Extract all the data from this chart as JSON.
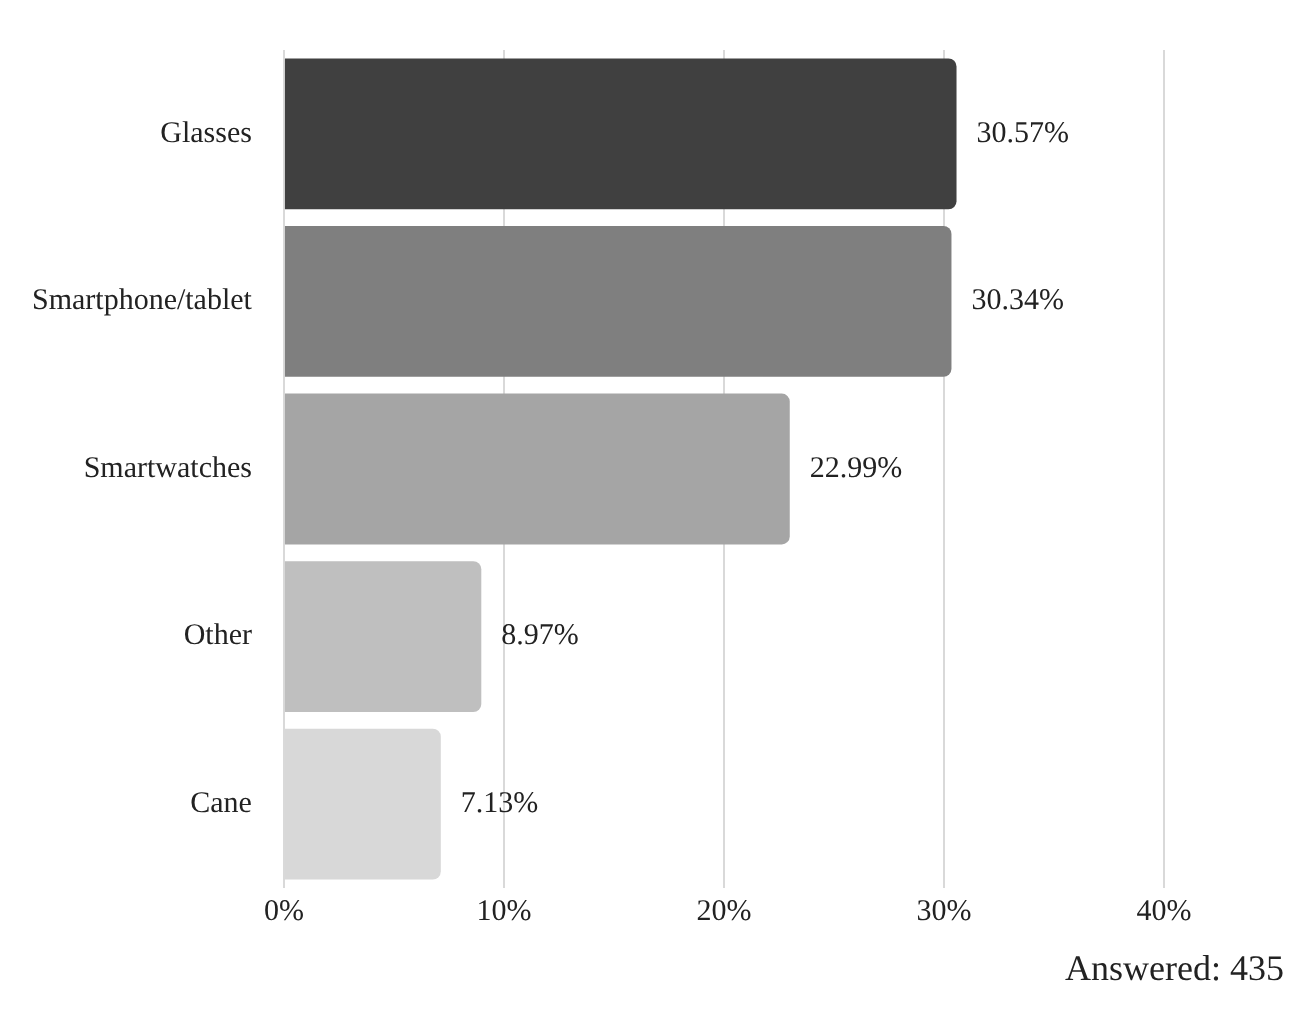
{
  "chart_data": {
    "type": "bar",
    "orientation": "horizontal",
    "categories": [
      "Glasses",
      "Smartphone/tablet",
      "Smartwatches",
      "Other",
      "Cane"
    ],
    "values": [
      30.57,
      30.34,
      22.99,
      8.97,
      7.13
    ],
    "colors": [
      "#404040",
      "#7f7f7f",
      "#a5a5a5",
      "#bfbfbf",
      "#d8d8d8"
    ],
    "value_labels": [
      "30.57%",
      "30.34%",
      "22.99%",
      "8.97%",
      "7.13%"
    ],
    "xlim": [
      0,
      40
    ],
    "xticks": [
      {
        "value": 0,
        "label": "0%"
      },
      {
        "value": 10,
        "label": "10%"
      },
      {
        "value": 20,
        "label": "20%"
      },
      {
        "value": 30,
        "label": "30%"
      },
      {
        "value": 40,
        "label": "40%"
      }
    ],
    "grid": "x",
    "legend": false,
    "annotations": [
      "Answered: 435"
    ]
  }
}
